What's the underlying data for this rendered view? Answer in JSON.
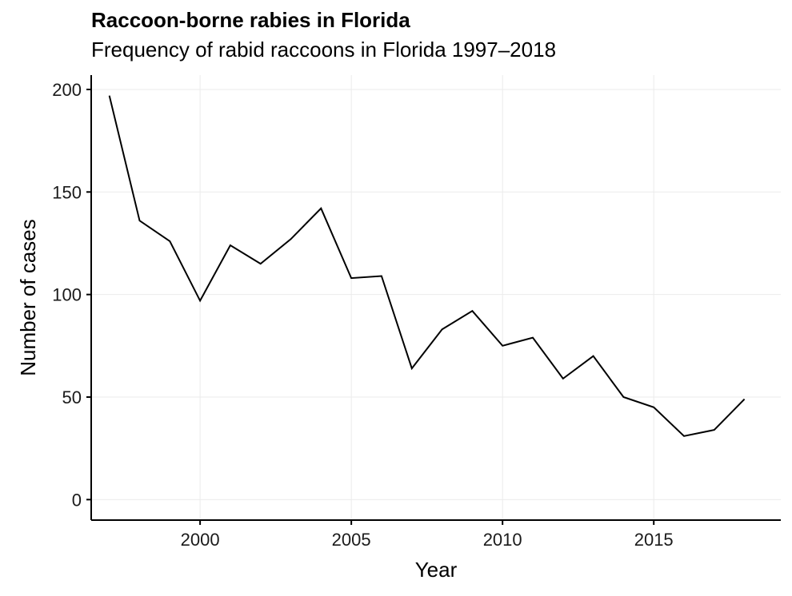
{
  "chart_data": {
    "type": "line",
    "title": "Raccoon-borne rabies in Florida",
    "subtitle": "Frequency of rabid raccoons in Florida 1997–2018",
    "xlabel": "Year",
    "ylabel": "Number of cases",
    "xlim": [
      1996.4,
      2019.2
    ],
    "ylim": [
      -10,
      207
    ],
    "xticks": [
      2000,
      2005,
      2010,
      2015
    ],
    "yticks": [
      0,
      50,
      100,
      150,
      200
    ],
    "grid": true,
    "legend": "none",
    "series": [
      {
        "x": [
          1997,
          1998,
          1999,
          2000,
          2001,
          2002,
          2003,
          2004,
          2005,
          2006,
          2007,
          2008,
          2009,
          2010,
          2011,
          2012,
          2013,
          2014,
          2015,
          2016,
          2017,
          2018
        ],
        "values": [
          197,
          136,
          126,
          97,
          124,
          115,
          127,
          142,
          108,
          109,
          64,
          83,
          92,
          75,
          79,
          59,
          70,
          50,
          45,
          31,
          34,
          49
        ]
      }
    ],
    "colors": {
      "line": "#000000",
      "grid": "#ebebeb",
      "axis": "#000000"
    }
  }
}
